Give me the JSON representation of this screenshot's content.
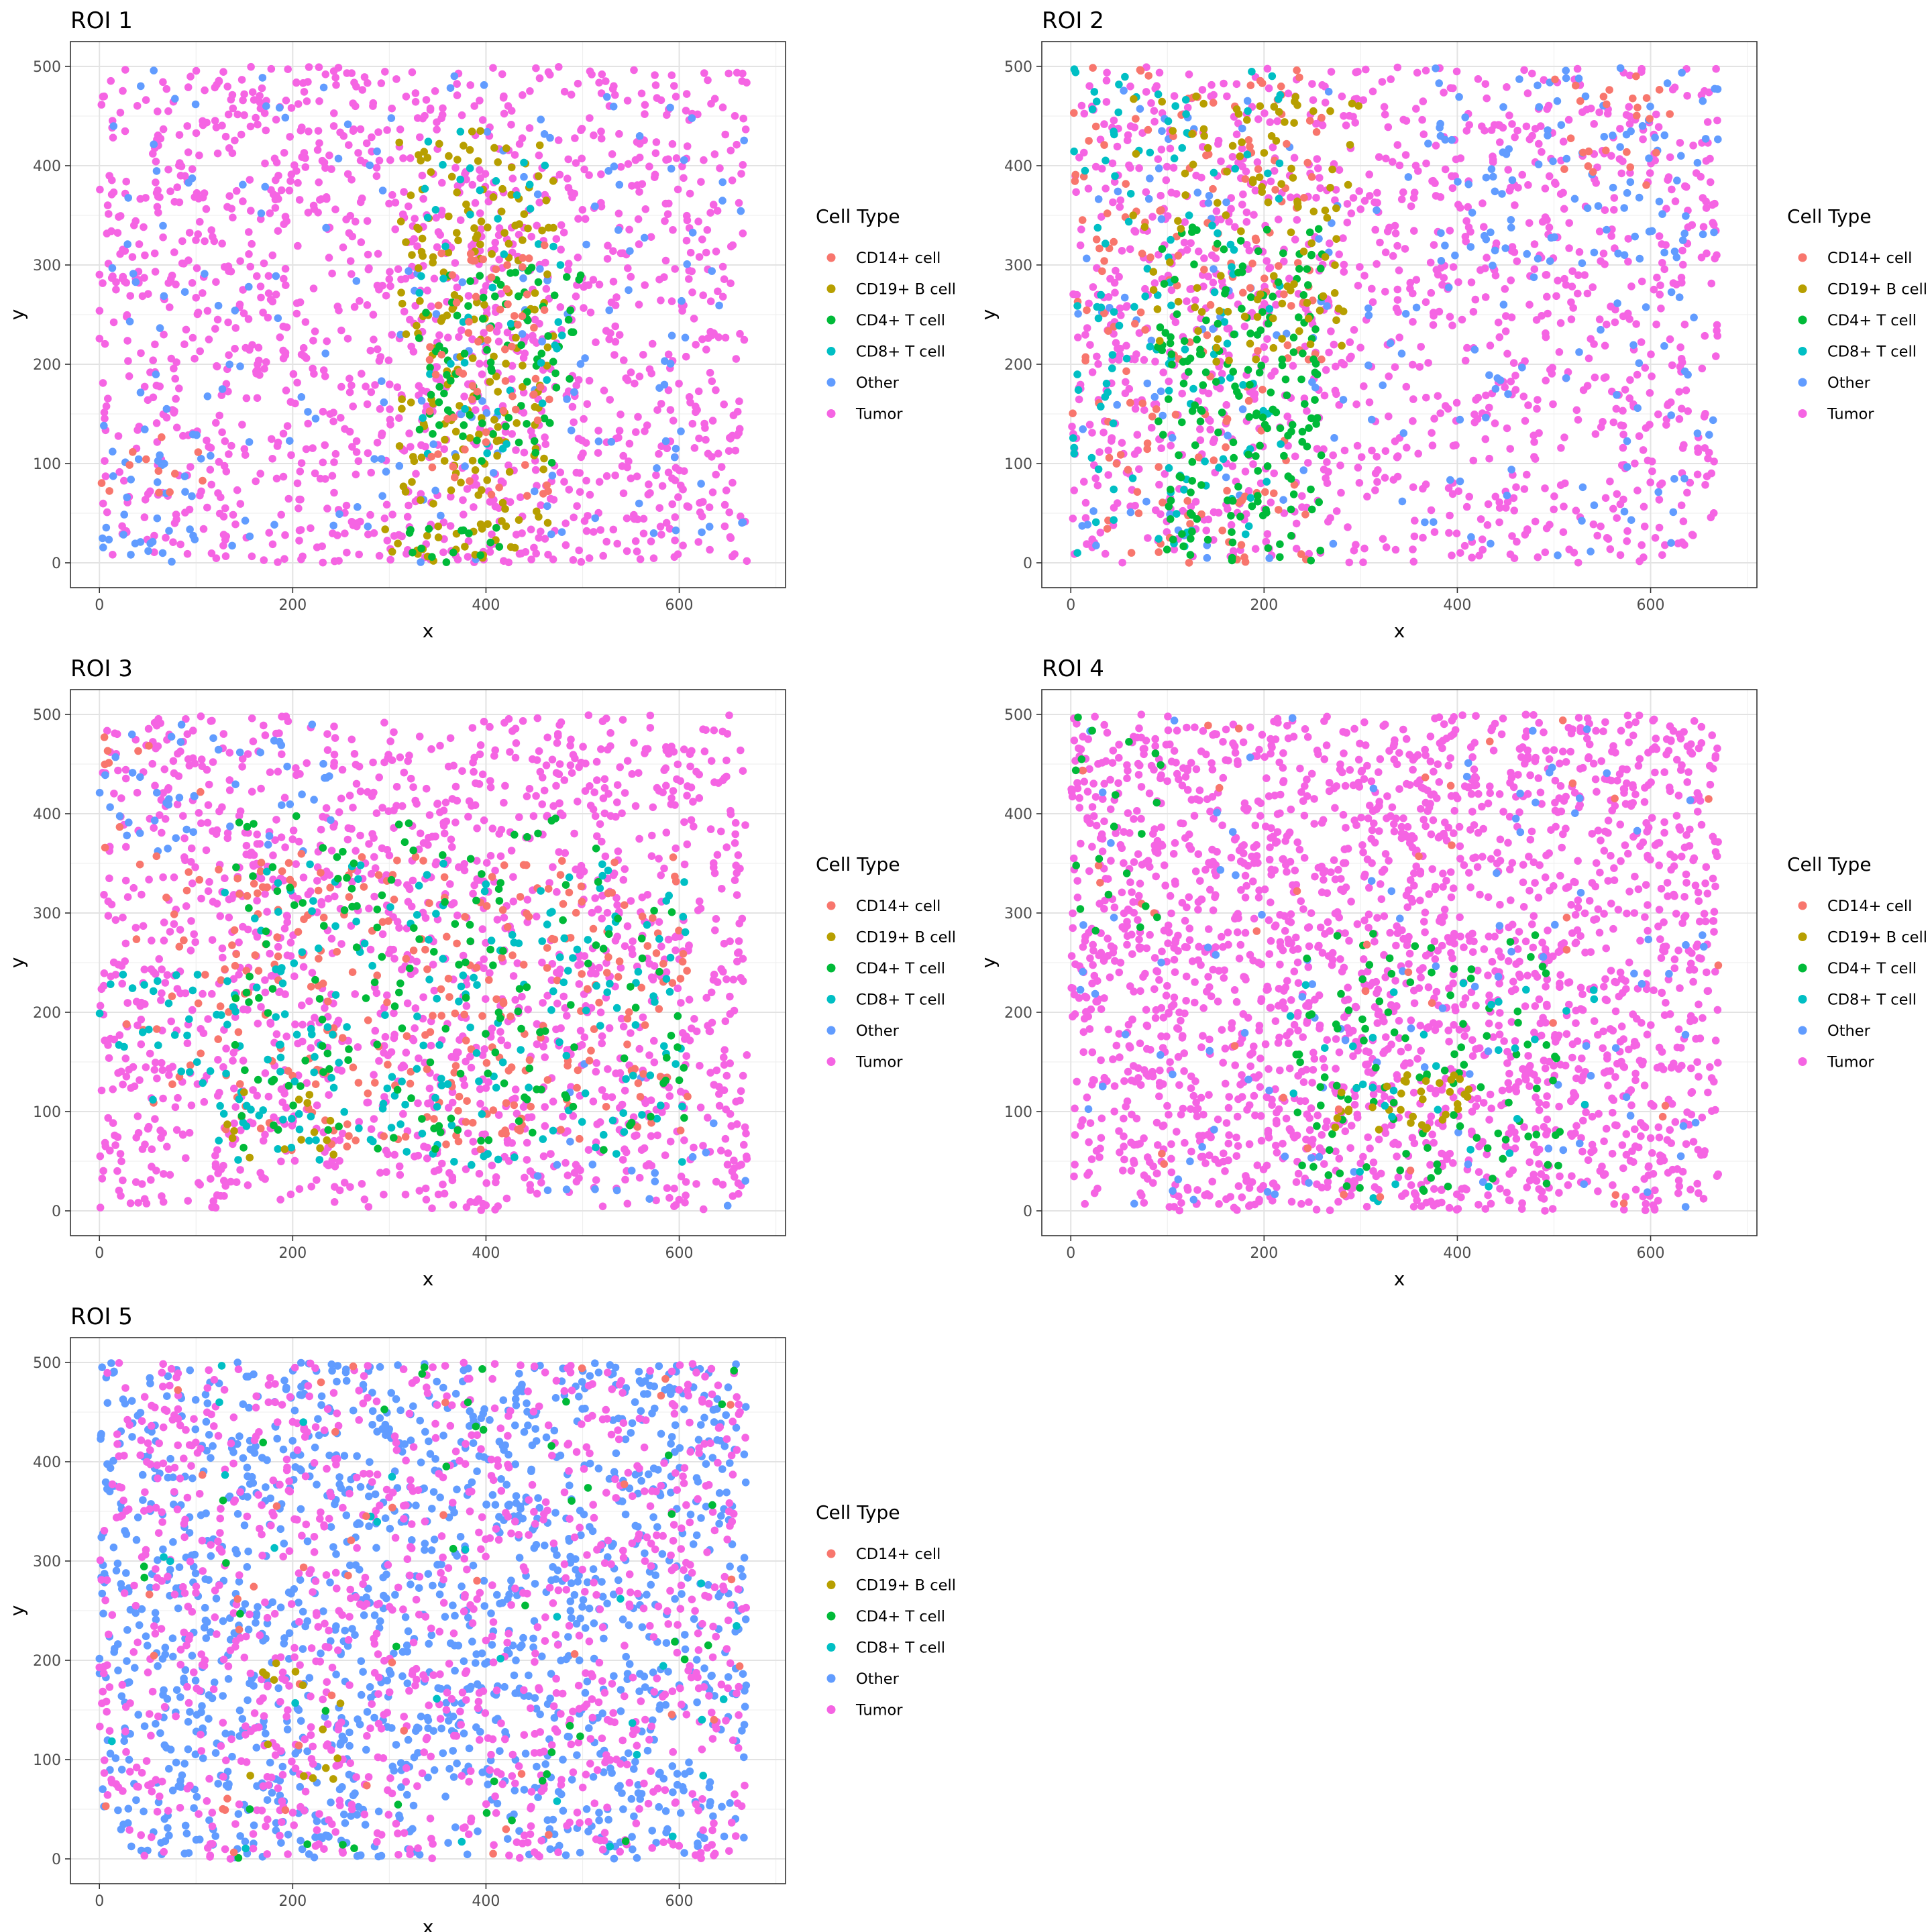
{
  "legend_title": "Cell Type",
  "cell_types": [
    {
      "name": "CD14+ cell",
      "color": "#F8766D"
    },
    {
      "name": "CD19+ B cell",
      "color": "#B79F00"
    },
    {
      "name": "CD4+ T cell",
      "color": "#00BA38"
    },
    {
      "name": "CD8+ T cell",
      "color": "#00BFC4"
    },
    {
      "name": "Other",
      "color": "#619CFF"
    },
    {
      "name": "Tumor",
      "color": "#F564E3"
    }
  ],
  "chart_data": [
    {
      "type": "scatter",
      "title": "ROI 1",
      "xlabel": "x",
      "ylabel": "y",
      "xlim": [
        -30,
        710
      ],
      "ylim": [
        -25,
        525
      ],
      "x_ticks": [
        0,
        200,
        400,
        600
      ],
      "y_ticks": [
        0,
        100,
        200,
        300,
        400,
        500
      ],
      "grid": true,
      "legend_position": "right",
      "clusters": [
        {
          "type": "Tumor",
          "n": 1450,
          "x": [
            0,
            670
          ],
          "y": [
            0,
            500
          ]
        },
        {
          "type": "Other",
          "n": 180,
          "x": [
            0,
            670
          ],
          "y": [
            0,
            500
          ]
        },
        {
          "type": "CD19+ B cell",
          "n": 190,
          "x": [
            310,
            470
          ],
          "y": [
            40,
            440
          ]
        },
        {
          "type": "CD4+ T cell",
          "n": 90,
          "x": [
            330,
            500
          ],
          "y": [
            100,
            300
          ]
        },
        {
          "type": "CD8+ T cell",
          "n": 50,
          "x": [
            330,
            480
          ],
          "y": [
            100,
            440
          ]
        },
        {
          "type": "CD14+ cell",
          "n": 70,
          "x": [
            340,
            470
          ],
          "y": [
            60,
            320
          ]
        },
        {
          "type": "CD19+ B cell",
          "n": 25,
          "x": [
            290,
            430
          ],
          "y": [
            0,
            40
          ]
        },
        {
          "type": "CD4+ T cell",
          "n": 15,
          "x": [
            320,
            420
          ],
          "y": [
            0,
            40
          ]
        },
        {
          "type": "Other",
          "n": 30,
          "x": [
            0,
            110
          ],
          "y": [
            0,
            140
          ]
        },
        {
          "type": "CD14+ cell",
          "n": 12,
          "x": [
            0,
            120
          ],
          "y": [
            60,
            140
          ]
        }
      ]
    },
    {
      "type": "scatter",
      "title": "ROI 2",
      "xlabel": "x",
      "ylabel": "y",
      "xlim": [
        -30,
        710
      ],
      "ylim": [
        -25,
        525
      ],
      "x_ticks": [
        0,
        200,
        400,
        600
      ],
      "y_ticks": [
        0,
        100,
        200,
        300,
        400,
        500
      ],
      "grid": true,
      "legend_position": "right",
      "clusters": [
        {
          "type": "Tumor",
          "n": 1250,
          "x": [
            0,
            670
          ],
          "y": [
            0,
            500
          ]
        },
        {
          "type": "Other",
          "n": 170,
          "x": [
            0,
            670
          ],
          "y": [
            0,
            500
          ]
        },
        {
          "type": "Other",
          "n": 80,
          "x": [
            380,
            670
          ],
          "y": [
            300,
            500
          ]
        },
        {
          "type": "CD14+ cell",
          "n": 180,
          "x": [
            0,
            260
          ],
          "y": [
            0,
            500
          ]
        },
        {
          "type": "CD8+ T cell",
          "n": 130,
          "x": [
            0,
            220
          ],
          "y": [
            0,
            500
          ]
        },
        {
          "type": "CD4+ T cell",
          "n": 190,
          "x": [
            90,
            260
          ],
          "y": [
            0,
            340
          ]
        },
        {
          "type": "CD19+ B cell",
          "n": 110,
          "x": [
            60,
            300
          ],
          "y": [
            200,
            470
          ]
        },
        {
          "type": "CD14+ cell",
          "n": 25,
          "x": [
            500,
            620
          ],
          "y": [
            380,
            500
          ]
        }
      ]
    },
    {
      "type": "scatter",
      "title": "ROI 3",
      "xlabel": "x",
      "ylabel": "y",
      "xlim": [
        -30,
        710
      ],
      "ylim": [
        -25,
        525
      ],
      "x_ticks": [
        0,
        200,
        400,
        600
      ],
      "y_ticks": [
        0,
        100,
        200,
        300,
        400,
        500
      ],
      "grid": true,
      "legend_position": "right",
      "clusters": [
        {
          "type": "Tumor",
          "n": 1500,
          "x": [
            0,
            670
          ],
          "y": [
            0,
            500
          ]
        },
        {
          "type": "Other",
          "n": 50,
          "x": [
            0,
            240
          ],
          "y": [
            360,
            500
          ]
        },
        {
          "type": "Other",
          "n": 20,
          "x": [
            450,
            670
          ],
          "y": [
            0,
            150
          ]
        },
        {
          "type": "CD14+ cell",
          "n": 280,
          "x": [
            120,
            610
          ],
          "y": [
            60,
            360
          ]
        },
        {
          "type": "CD8+ T cell",
          "n": 220,
          "x": [
            120,
            610
          ],
          "y": [
            40,
            350
          ]
        },
        {
          "type": "CD4+ T cell",
          "n": 170,
          "x": [
            140,
            610
          ],
          "y": [
            60,
            400
          ]
        },
        {
          "type": "CD19+ B cell",
          "n": 15,
          "x": [
            130,
            260
          ],
          "y": [
            50,
            120
          ]
        },
        {
          "type": "CD14+ cell",
          "n": 30,
          "x": [
            0,
            110
          ],
          "y": [
            100,
            500
          ]
        },
        {
          "type": "CD8+ T cell",
          "n": 25,
          "x": [
            0,
            130
          ],
          "y": [
            110,
            240
          ]
        }
      ]
    },
    {
      "type": "scatter",
      "title": "ROI 4",
      "xlabel": "x",
      "ylabel": "y",
      "xlim": [
        -30,
        710
      ],
      "ylim": [
        -25,
        525
      ],
      "x_ticks": [
        0,
        200,
        400,
        600
      ],
      "y_ticks": [
        0,
        100,
        200,
        300,
        400,
        500
      ],
      "grid": true,
      "legend_position": "right",
      "clusters": [
        {
          "type": "Tumor",
          "n": 2200,
          "x": [
            0,
            670
          ],
          "y": [
            0,
            500
          ]
        },
        {
          "type": "Other",
          "n": 110,
          "x": [
            0,
            670
          ],
          "y": [
            0,
            500
          ]
        },
        {
          "type": "CD4+ T cell",
          "n": 110,
          "x": [
            230,
            520
          ],
          "y": [
            20,
            280
          ]
        },
        {
          "type": "CD19+ B cell",
          "n": 35,
          "x": [
            270,
            420
          ],
          "y": [
            80,
            140
          ]
        },
        {
          "type": "CD8+ T cell",
          "n": 35,
          "x": [
            220,
            560
          ],
          "y": [
            0,
            240
          ]
        },
        {
          "type": "CD14+ cell",
          "n": 40,
          "x": [
            0,
            670
          ],
          "y": [
            0,
            500
          ]
        },
        {
          "type": "CD4+ T cell",
          "n": 20,
          "x": [
            0,
            110
          ],
          "y": [
            280,
            500
          ]
        }
      ]
    },
    {
      "type": "scatter",
      "title": "ROI 5",
      "xlabel": "x",
      "ylabel": "y",
      "xlim": [
        -30,
        710
      ],
      "ylim": [
        -25,
        525
      ],
      "x_ticks": [
        0,
        200,
        400,
        600
      ],
      "y_ticks": [
        0,
        100,
        200,
        300,
        400,
        500
      ],
      "grid": true,
      "legend_position": "right",
      "clusters": [
        {
          "type": "Other",
          "n": 1400,
          "x": [
            0,
            670
          ],
          "y": [
            0,
            500
          ]
        },
        {
          "type": "Tumor",
          "n": 1100,
          "x": [
            0,
            670
          ],
          "y": [
            0,
            500
          ]
        },
        {
          "type": "CD4+ T cell",
          "n": 45,
          "x": [
            0,
            670
          ],
          "y": [
            0,
            500
          ]
        },
        {
          "type": "CD8+ T cell",
          "n": 30,
          "x": [
            0,
            670
          ],
          "y": [
            0,
            500
          ]
        },
        {
          "type": "CD14+ cell",
          "n": 45,
          "x": [
            0,
            670
          ],
          "y": [
            0,
            500
          ]
        },
        {
          "type": "CD19+ B cell",
          "n": 15,
          "x": [
            150,
            260
          ],
          "y": [
            80,
            200
          ]
        }
      ]
    }
  ]
}
